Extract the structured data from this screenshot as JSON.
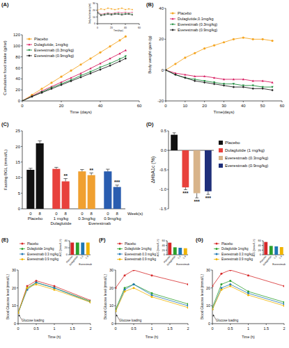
{
  "chart_data": [
    {
      "type": "line",
      "title": "(A)",
      "x_label": "Time (days)",
      "y_label": "Cumulative food intake (g/rat)",
      "x": [
        0,
        5,
        10,
        15,
        20,
        25,
        30,
        35,
        40,
        45,
        50,
        53
      ],
      "xlim": [
        0,
        60
      ],
      "xticks": [
        0,
        20,
        40,
        60
      ],
      "ylim": [
        0,
        120
      ],
      "yticks": [
        0,
        20,
        40,
        60,
        80,
        100,
        120
      ],
      "legend": "top-left",
      "series": [
        {
          "name": "Placebo",
          "color": "#f5a623",
          "marker": "circle",
          "values": [
            0,
            11,
            22,
            33,
            44,
            55,
            66,
            77,
            88,
            99,
            110,
            117
          ]
        },
        {
          "name": "Dulaglutide, 1mg/kg",
          "color": "#d81b60",
          "marker": "triangle",
          "values": [
            0,
            9,
            18,
            26,
            34,
            42,
            50,
            59,
            68,
            77,
            86,
            92
          ]
        },
        {
          "name": "Everestmab (0.3mg/kg)",
          "color": "#1b8a3a",
          "marker": "triangle-down",
          "values": [
            0,
            8,
            16,
            24,
            31,
            38,
            46,
            53,
            61,
            68,
            76,
            81
          ]
        },
        {
          "name": "Everestmab (0.9mg/kg)",
          "color": "#222222",
          "marker": "diamond",
          "values": [
            0,
            8,
            15,
            22,
            29,
            36,
            43,
            50,
            57,
            64,
            72,
            77
          ]
        }
      ],
      "inset": {
        "type": "line",
        "x_label": "Time(days)",
        "y_label": "Daily food intake (g/rat)",
        "x": [
          0,
          5,
          10,
          15,
          20,
          25,
          30,
          35,
          40,
          45,
          50
        ],
        "xlim": [
          0,
          60
        ],
        "xticks": [
          0,
          20,
          40,
          60
        ],
        "ylim": [
          0,
          30
        ],
        "yticks": [
          0,
          10,
          20,
          30
        ],
        "series": [
          {
            "name": "Placebo",
            "color": "#f5a623",
            "marker": "circle",
            "values": [
              20,
              22,
              21,
              23,
              22,
              21,
              22,
              23,
              21,
              22,
              21
            ]
          },
          {
            "name": "Dulaglutide, 1mg/kg",
            "color": "#d81b60",
            "marker": "triangle",
            "values": [
              18,
              14,
              15,
              16,
              15,
              16,
              17,
              16,
              17,
              16,
              17
            ]
          },
          {
            "name": "Everestmab (0.3mg/kg)",
            "color": "#1b8a3a",
            "marker": "triangle-down",
            "values": [
              17,
              13,
              14,
              15,
              14,
              15,
              15,
              14,
              15,
              15,
              14
            ]
          },
          {
            "name": "Everestmab (0.9mg/kg)",
            "color": "#222222",
            "marker": "diamond",
            "values": [
              16,
              12,
              13,
              14,
              13,
              14,
              14,
              13,
              14,
              14,
              13
            ]
          }
        ]
      }
    },
    {
      "type": "line",
      "title": "(B)",
      "x_label": "Time(days)",
      "y_label": "Body weight gain (g)",
      "x": [
        0,
        5,
        10,
        15,
        20,
        25,
        30,
        35,
        40,
        45,
        50,
        55
      ],
      "xlim": [
        0,
        60
      ],
      "xticks": [
        0,
        10,
        20,
        30,
        40,
        50,
        60
      ],
      "ylim": [
        -20,
        40
      ],
      "yticks": [
        -20,
        0,
        20,
        40
      ],
      "legend": "top-left",
      "series": [
        {
          "name": "Placebo",
          "color": "#f5a623",
          "marker": "circle",
          "values": [
            0,
            4,
            8,
            11,
            14,
            16,
            18,
            20,
            21,
            20,
            20,
            19
          ]
        },
        {
          "name": "Dulaglutide,0.1mg/kg",
          "color": "#d81b60",
          "marker": "triangle",
          "values": [
            0,
            -2,
            -3,
            -4,
            -4,
            -5,
            -6,
            -6,
            -6,
            -7,
            -7,
            -8
          ]
        },
        {
          "name": "Everestmab (0.3mg/kg)",
          "color": "#1b8a3a",
          "marker": "triangle-down",
          "values": [
            0,
            -3,
            -5,
            -6,
            -7,
            -8,
            -9,
            -9,
            -10,
            -10,
            -11,
            -11
          ]
        },
        {
          "name": "Everestmab (0.9mg/kg)",
          "color": "#222222",
          "marker": "diamond",
          "values": [
            0,
            -3,
            -5,
            -7,
            -8,
            -9,
            -10,
            -11,
            -11,
            -12,
            -12,
            -13
          ]
        }
      ]
    },
    {
      "type": "bar",
      "title": "(C)",
      "y_label": "Fasting BGL (mmol/L)",
      "x_label": "Week(s)",
      "categories": [
        "0",
        "8",
        "0",
        "8",
        "0",
        "8",
        "0",
        "8"
      ],
      "groups": [
        {
          "name": "Placebo"
        },
        {
          "name": "Dulaglutide",
          "dose": "1 mg/kg"
        },
        {
          "name": "Everestmab",
          "dose": "0.3mg/kg"
        },
        {
          "dose": "0.9mg/kg"
        }
      ],
      "values": [
        12.5,
        21,
        12.8,
        8.8,
        12,
        10.8,
        12,
        7
      ],
      "errors": [
        0.5,
        0.8,
        0.5,
        0.9,
        0.6,
        0.7,
        0.7,
        0.6
      ],
      "colors": [
        "#111111",
        "#111111",
        "#e8413c",
        "#e8413c",
        "#f0a030",
        "#f0a030",
        "#2a5db0",
        "#2a5db0"
      ],
      "annotations": [
        null,
        null,
        null,
        "**",
        null,
        "**",
        null,
        "***"
      ],
      "ylim": [
        0,
        25
      ],
      "yticks": [
        0,
        5,
        10,
        15,
        20,
        25
      ]
    },
    {
      "type": "bar",
      "title": "(D)",
      "y_label": "ΔHbA1c (%)",
      "categories": [
        "Placebo",
        "Dulaglutide (1 mg/kg)",
        "Everestmab (0.3mg/kg)",
        "Everestmab (0.9mg/kg)"
      ],
      "values": [
        0.4,
        -0.95,
        -1.1,
        -1.05
      ],
      "errors": [
        0.05,
        0.06,
        0.12,
        0.08
      ],
      "colors": [
        "#111111",
        "#e8413c",
        "#d8b48a",
        "#1f2f7a"
      ],
      "annotations": [
        null,
        "***",
        "***",
        "***"
      ],
      "ylim": [
        -1.5,
        0.5
      ],
      "yticks": [
        -1.5,
        {
          "value": -1,
          "label": "-1.0"
        },
        -0.5,
        {
          "value": 0,
          "label": "0.0"
        },
        0.5
      ],
      "tick_labels": "y",
      "legend": "right"
    },
    {
      "type": "line",
      "title": "(E)",
      "x_label": "Time (h)",
      "y_label": "Blood Glucose level (mmol/L)",
      "annotation": "Glucose loading",
      "x": [
        0,
        0.25,
        0.5,
        1,
        2
      ],
      "xlim": [
        0,
        2
      ],
      "xticks": [
        0,
        0.5,
        1,
        1.5,
        2
      ],
      "ylim": [
        0,
        30
      ],
      "yticks": [
        0,
        10,
        20,
        30
      ],
      "legend": "top-left",
      "series": [
        {
          "name": "Placebo",
          "color": "#d62728",
          "marker": "circle",
          "values": [
            6,
            21,
            24,
            21,
            13
          ]
        },
        {
          "name": "Dulaglutide 1mg/kg",
          "color": "#2ca02c",
          "marker": "circle",
          "values": [
            6,
            20,
            23,
            20,
            12.5
          ]
        },
        {
          "name": "Everestmab 0.3 mg/kg",
          "color": "#1f77b4",
          "marker": "circle",
          "values": [
            6,
            19,
            23,
            20,
            12
          ]
        },
        {
          "name": "Everestmab 0.9 mg/kg",
          "color": "#f0b400",
          "marker": "circle",
          "values": [
            6,
            20,
            22,
            19,
            12
          ]
        }
      ],
      "inset": {
        "type": "bar",
        "y_label": "AUC (mmol/L.h)",
        "x_label": "Everestmab",
        "categories": [
          "Placebo",
          "Dulaglutide",
          "0.3",
          "0.9"
        ],
        "values": [
          35,
          35,
          35,
          35
        ],
        "colors": [
          "#d62728",
          "#2ca02c",
          "#1f77b4",
          "#f0b400"
        ],
        "ylim": [
          0,
          40
        ],
        "yticks": [
          0,
          20,
          40
        ]
      }
    },
    {
      "type": "line",
      "title": "(F)",
      "x_label": "Time (h)",
      "y_label": "Blood Glucose level (mmol/L)",
      "annotation": "Glucose loading",
      "x": [
        0,
        0.25,
        0.5,
        1,
        2
      ],
      "xlim": [
        0,
        2
      ],
      "xticks": [
        0,
        0.5,
        1,
        1.5,
        2
      ],
      "ylim": [
        0,
        30
      ],
      "yticks": [
        0,
        10,
        20,
        30
      ],
      "legend": "top-left",
      "series": [
        {
          "name": "Placebo",
          "color": "#d62728",
          "marker": "circle",
          "values": [
            20,
            27,
            30,
            27,
            22
          ]
        },
        {
          "name": "Dulaglutide 1mg/kg",
          "color": "#2ca02c",
          "marker": "circle",
          "values": [
            8,
            20,
            22,
            17,
            11
          ]
        },
        {
          "name": "Everestmab 0.3 mg/kg",
          "color": "#1f77b4",
          "marker": "circle",
          "values": [
            7,
            19,
            22,
            16,
            10
          ]
        },
        {
          "name": "Everestmab 0.9 mg/kg",
          "color": "#f0b400",
          "marker": "circle",
          "values": [
            7,
            18,
            20,
            15,
            9
          ]
        }
      ],
      "inset": {
        "type": "bar",
        "y_label": "AUC (mmol/L.h)",
        "x_label": "Everestmab",
        "categories": [
          "Placebo",
          "Dulaglutide",
          "0.3",
          "0.9"
        ],
        "values": [
          52,
          32,
          30,
          28
        ],
        "colors": [
          "#d62728",
          "#2ca02c",
          "#1f77b4",
          "#f0b400"
        ],
        "ylim": [
          0,
          60
        ],
        "yticks": [
          0,
          20,
          40,
          60
        ]
      }
    },
    {
      "type": "line",
      "title": "(G)",
      "x_label": "Time (h)",
      "y_label": "Blood Glucose level (mmol/L)",
      "annotation": "Glucose loading",
      "x": [
        0,
        0.25,
        0.5,
        1,
        2
      ],
      "xlim": [
        0,
        2
      ],
      "xticks": [
        0,
        0.5,
        1,
        1.5,
        2
      ],
      "ylim": [
        0,
        30
      ],
      "yticks": [
        0,
        10,
        20,
        30
      ],
      "legend": "top-left",
      "series": [
        {
          "name": "Placebo",
          "color": "#d62728",
          "marker": "circle",
          "values": [
            21,
            28,
            30,
            27,
            21
          ]
        },
        {
          "name": "Dulaglutide 1mg/kg",
          "color": "#2ca02c",
          "marker": "circle",
          "values": [
            9,
            22,
            24,
            18,
            12
          ]
        },
        {
          "name": "Everestmab 0.3 mg/kg",
          "color": "#1f77b4",
          "marker": "circle",
          "values": [
            8,
            20,
            22,
            17,
            11
          ]
        },
        {
          "name": "Everestmab 0.9 mg/kg",
          "color": "#f0b400",
          "marker": "circle",
          "values": [
            8,
            19,
            21,
            16,
            10
          ]
        }
      ],
      "inset": {
        "type": "bar",
        "y_label": "AUC (mmol/L.h)",
        "x_label": "Everestmab",
        "categories": [
          "Placebo",
          "Dulaglutide",
          "0.3",
          "0.9"
        ],
        "values": [
          55,
          38,
          36,
          33
        ],
        "colors": [
          "#d62728",
          "#2ca02c",
          "#1f77b4",
          "#f0b400"
        ],
        "ylim": [
          0,
          60
        ],
        "yticks": [
          0,
          20,
          40,
          60
        ]
      }
    }
  ]
}
